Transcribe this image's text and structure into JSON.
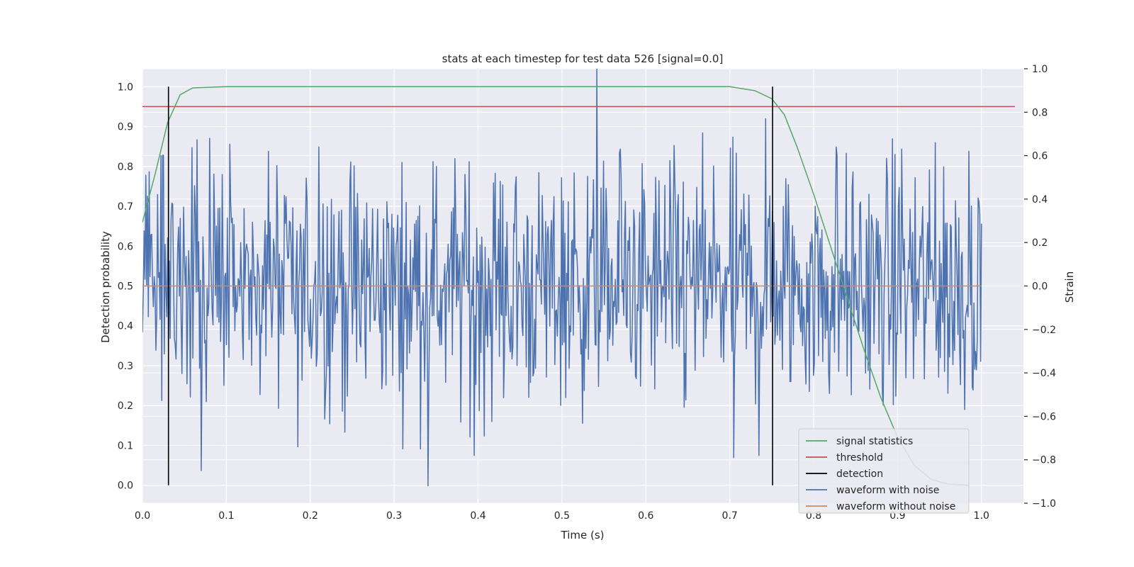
{
  "chart_data": {
    "type": "line",
    "title": "stats at each timestep for test data 526 [signal=0.0]",
    "xlabel": "Time (s)",
    "ylabel_left": "Detection probability",
    "ylabel_right": "Strain",
    "xlim": [
      0.0,
      1.05
    ],
    "ylim_left": [
      -0.045,
      1.045
    ],
    "ylim_right": [
      -1.0,
      1.0
    ],
    "x_ticks": [
      0.0,
      0.1,
      0.2,
      0.3,
      0.4,
      0.5,
      0.6,
      0.7,
      0.8,
      0.9,
      1.0
    ],
    "y_ticks_left": [
      0.0,
      0.1,
      0.2,
      0.3,
      0.4,
      0.5,
      0.6,
      0.7,
      0.8,
      0.9,
      1.0
    ],
    "y_ticks_right": [
      -1.0,
      -0.8,
      -0.6,
      -0.4,
      -0.2,
      0.0,
      0.2,
      0.4,
      0.6,
      0.8,
      1.0
    ],
    "grid": true,
    "legend_position": "bottom-right",
    "series": [
      {
        "name": "signal statistics",
        "color": "#55a868",
        "axis": "left",
        "x": [
          0.0,
          0.015,
          0.03,
          0.045,
          0.06,
          0.1,
          0.7,
          0.73,
          0.75,
          0.765,
          0.78,
          0.8,
          0.82,
          0.84,
          0.86,
          0.88,
          0.9,
          0.92,
          0.94,
          0.96,
          0.985
        ],
        "y": [
          0.66,
          0.78,
          0.91,
          0.98,
          0.997,
          1.0,
          1.0,
          0.99,
          0.97,
          0.93,
          0.85,
          0.73,
          0.6,
          0.47,
          0.34,
          0.22,
          0.12,
          0.05,
          0.015,
          0.003,
          0.0
        ]
      },
      {
        "name": "threshold",
        "color": "#c44e52",
        "axis": "left",
        "x": [
          0.0,
          1.05
        ],
        "y": [
          0.95,
          0.95
        ]
      },
      {
        "name": "detection",
        "color": "#000000",
        "axis": "left",
        "x": [
          0.031,
          0.751
        ],
        "y_range": [
          0.0,
          1.0
        ]
      },
      {
        "name": "waveform with noise",
        "color": "#4c72b0",
        "axis": "right",
        "x_range": [
          0.0,
          1.0
        ],
        "n_points": 1000,
        "amplitude": 0.28,
        "peaks": [
          {
            "x": 0.542,
            "y": 1.0
          },
          {
            "x": 0.34,
            "y": -0.92
          },
          {
            "x": 0.08,
            "y": 0.68
          },
          {
            "x": 0.743,
            "y": 0.77
          },
          {
            "x": 0.022,
            "y": 0.6
          },
          {
            "x": 0.07,
            "y": -0.85
          },
          {
            "x": 0.185,
            "y": -0.74
          },
          {
            "x": 0.21,
            "y": 0.64
          },
          {
            "x": 0.905,
            "y": 0.63
          },
          {
            "x": 0.945,
            "y": 0.66
          },
          {
            "x": 0.985,
            "y": 0.62
          },
          {
            "x": 0.395,
            "y": -0.78
          },
          {
            "x": 0.705,
            "y": -0.79
          },
          {
            "x": 0.735,
            "y": -0.78
          },
          {
            "x": 0.827,
            "y": 0.64
          },
          {
            "x": 0.57,
            "y": 0.63
          },
          {
            "x": 0.15,
            "y": 0.62
          }
        ]
      },
      {
        "name": "waveform without noise",
        "color": "#dd8452",
        "axis": "right",
        "x": [
          0.0,
          1.0
        ],
        "y": [
          0.0,
          0.0
        ]
      }
    ]
  }
}
